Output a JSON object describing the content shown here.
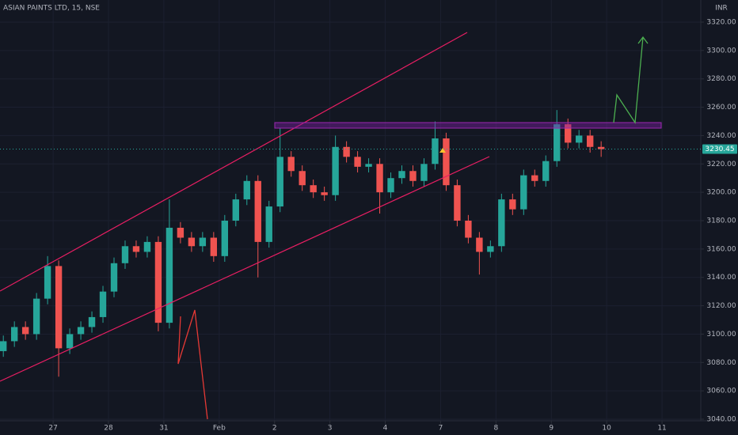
{
  "chart_data": {
    "type": "candlestick",
    "title": "ASIAN PAINTS LTD, 15, NSE",
    "currency": "INR",
    "last_price": 3230.45,
    "up_color": "#26a69a",
    "down_color": "#ef5350",
    "grid": true,
    "xlim": [
      -0.96,
      11.7
    ],
    "xticks": [
      {
        "value": 0,
        "label": "27"
      },
      {
        "value": 1,
        "label": "28"
      },
      {
        "value": 2,
        "label": "31"
      },
      {
        "value": 3,
        "label": "Feb"
      },
      {
        "value": 4,
        "label": "2"
      },
      {
        "value": 5,
        "label": "3"
      },
      {
        "value": 6,
        "label": "4"
      },
      {
        "value": 7,
        "label": "7"
      },
      {
        "value": 8,
        "label": "8"
      },
      {
        "value": 9,
        "label": "9"
      },
      {
        "value": 10,
        "label": "10"
      },
      {
        "value": 11,
        "label": "11"
      }
    ],
    "ylim": [
      3038.9,
      3335.6
    ],
    "yticks": [
      {
        "value": 3040,
        "label": "3040.00"
      },
      {
        "value": 3060,
        "label": "3060.00"
      },
      {
        "value": 3080,
        "label": "3080.00"
      },
      {
        "value": 3100,
        "label": "3100.00"
      },
      {
        "value": 3120,
        "label": "3120.00"
      },
      {
        "value": 3140,
        "label": "3140.00"
      },
      {
        "value": 3160,
        "label": "3160.00"
      },
      {
        "value": 3180,
        "label": "3180.00"
      },
      {
        "value": 3200,
        "label": "3200.00"
      },
      {
        "value": 3220,
        "label": "3220.00"
      },
      {
        "value": 3240,
        "label": "3240.00"
      },
      {
        "value": 3260,
        "label": "3260.00"
      },
      {
        "value": 3280,
        "label": "3280.00"
      },
      {
        "value": 3300,
        "label": "3300.00"
      },
      {
        "value": 3320,
        "label": "3320.00"
      }
    ],
    "x": [
      -0.9,
      -0.7,
      -0.5,
      -0.3,
      -0.1,
      0.1,
      0.3,
      0.5,
      0.7,
      0.9,
      1.1,
      1.3,
      1.5,
      1.7,
      1.9,
      2.1,
      2.3,
      2.5,
      2.7,
      2.9,
      3.1,
      3.3,
      3.5,
      3.7,
      3.9,
      4.1,
      4.3,
      4.5,
      4.7,
      4.9,
      5.1,
      5.3,
      5.5,
      5.7,
      5.9,
      6.1,
      6.3,
      6.5,
      6.7,
      6.9,
      7.1,
      7.3,
      7.5,
      7.7,
      7.9,
      8.1,
      8.3,
      8.5,
      8.7,
      8.9,
      9.1,
      9.3,
      9.5,
      9.7,
      9.9
    ],
    "open": [
      3088,
      3095,
      3105,
      3100,
      3125,
      3148,
      3090,
      3100,
      3105,
      3112,
      3130,
      3150,
      3162,
      3158,
      3165,
      3108,
      3175,
      3168,
      3162,
      3168,
      3155,
      3180,
      3195,
      3208,
      3165,
      3190,
      3225,
      3215,
      3205,
      3200,
      3198,
      3232,
      3225,
      3218,
      3220,
      3200,
      3210,
      3215,
      3208,
      3220,
      3238,
      3205,
      3180,
      3168,
      3158,
      3162,
      3195,
      3188,
      3212,
      3208,
      3222,
      3248,
      3235,
      3240,
      3232
    ],
    "high": [
      3099,
      3109,
      3109,
      3129,
      3155,
      3152,
      3104,
      3109,
      3116,
      3134,
      3154,
      3166,
      3166,
      3169,
      3169,
      3195,
      3179,
      3172,
      3172,
      3172,
      3184,
      3199,
      3212,
      3212,
      3194,
      3245,
      3229,
      3219,
      3209,
      3204,
      3240,
      3236,
      3229,
      3224,
      3224,
      3214,
      3219,
      3219,
      3224,
      3250,
      3242,
      3209,
      3184,
      3172,
      3166,
      3199,
      3199,
      3216,
      3216,
      3226,
      3258,
      3252,
      3244,
      3244,
      3236
    ],
    "low": [
      3084,
      3091,
      3096,
      3096,
      3121,
      3070,
      3086,
      3096,
      3101,
      3108,
      3126,
      3146,
      3154,
      3154,
      3102,
      3104,
      3164,
      3158,
      3158,
      3151,
      3151,
      3176,
      3191,
      3140,
      3161,
      3186,
      3211,
      3201,
      3196,
      3194,
      3194,
      3221,
      3214,
      3214,
      3185,
      3196,
      3206,
      3204,
      3204,
      3216,
      3201,
      3176,
      3164,
      3142,
      3154,
      3158,
      3184,
      3184,
      3204,
      3204,
      3218,
      3231,
      3231,
      3228,
      3225
    ],
    "close": [
      3095,
      3105,
      3100,
      3125,
      3148,
      3090,
      3100,
      3105,
      3112,
      3130,
      3150,
      3162,
      3158,
      3165,
      3108,
      3175,
      3168,
      3162,
      3168,
      3155,
      3180,
      3195,
      3208,
      3165,
      3190,
      3225,
      3215,
      3205,
      3200,
      3198,
      3232,
      3225,
      3218,
      3220,
      3200,
      3210,
      3215,
      3208,
      3220,
      3238,
      3205,
      3180,
      3168,
      3158,
      3162,
      3195,
      3188,
      3212,
      3208,
      3222,
      3248,
      3235,
      3240,
      3232,
      3230.45
    ]
  }
}
